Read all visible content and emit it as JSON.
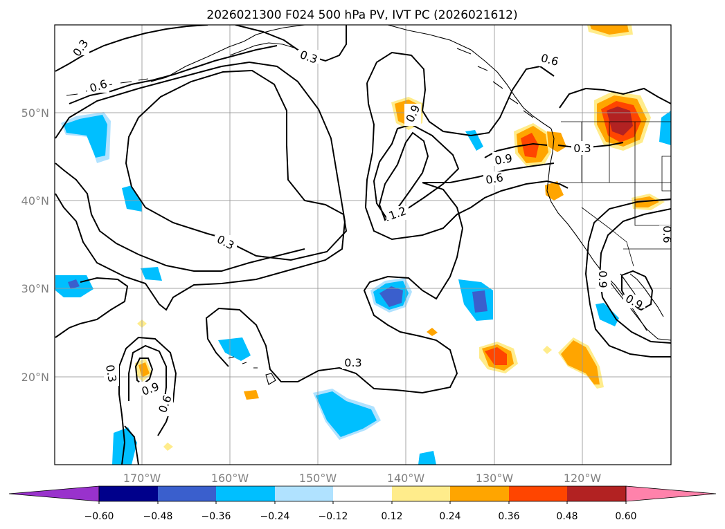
{
  "title": "2026021300 F024 500 hPa PV, IVT PC (2026021612)",
  "map": {
    "lon_labels": [
      "170°W",
      "160°W",
      "150°W",
      "140°W",
      "130°W",
      "120°W"
    ],
    "lat_labels": [
      "50°N",
      "40°N",
      "30°N",
      "20°N"
    ],
    "grid": true
  },
  "contour_labels": [
    {
      "text": "0.3",
      "id": "c1"
    },
    {
      "text": "0.3",
      "id": "c2"
    },
    {
      "text": "0.6",
      "id": "c3"
    },
    {
      "text": "0.3",
      "id": "c4"
    },
    {
      "text": "0.9",
      "id": "c5"
    },
    {
      "text": "1.2",
      "id": "c6"
    },
    {
      "text": "0.9",
      "id": "c7"
    },
    {
      "text": "0.6",
      "id": "c8"
    },
    {
      "text": "0.3",
      "id": "c9"
    },
    {
      "text": "0.6",
      "id": "c10"
    },
    {
      "text": "0.3",
      "id": "c11"
    },
    {
      "text": "0.3",
      "id": "c12"
    },
    {
      "text": "0.9",
      "id": "c13"
    },
    {
      "text": "0.6",
      "id": "c14"
    },
    {
      "text": "0.9",
      "id": "c15"
    },
    {
      "text": "0.9",
      "id": "c16"
    },
    {
      "text": "0.6",
      "id": "c17"
    }
  ],
  "colorbar": {
    "ticks": [
      "−0.60",
      "−0.48",
      "−0.36",
      "−0.24",
      "−0.12",
      "0.12",
      "0.24",
      "0.36",
      "0.48",
      "0.60"
    ],
    "colors": [
      "#9932cc",
      "#00008b",
      "#3a5fcd",
      "#00bfff",
      "#b0e2ff",
      "#ffffff",
      "#ffec8b",
      "#ffa500",
      "#ff4500",
      "#b22222",
      "#ff82ab"
    ]
  }
}
